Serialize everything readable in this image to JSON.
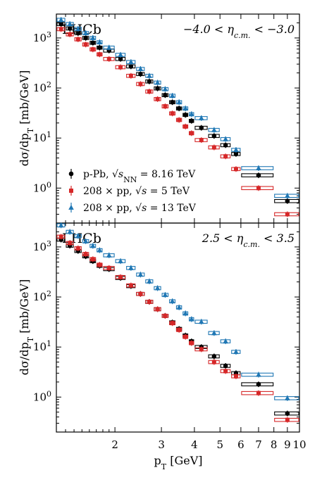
{
  "chart_data": {
    "type": "scatter",
    "xlabel": "p_T [GeV]",
    "ylabel": "dσ/dp_T [mb/GeV]",
    "x_scale": "log",
    "y_scale": "log",
    "xlim": [
      1.2,
      10
    ],
    "x_tick_labels": [
      "2",
      "3",
      "4",
      "5",
      "6",
      "7",
      "8",
      "9",
      "10"
    ],
    "y_tick_labels": [
      "10^0",
      "10^1",
      "10^2",
      "10^3"
    ],
    "bin_edges": [
      1.2,
      1.3,
      1.4,
      1.5,
      1.6,
      1.7,
      1.8,
      2.0,
      2.2,
      2.4,
      2.6,
      2.8,
      3.0,
      3.2,
      3.4,
      3.6,
      3.8,
      4.0,
      4.5,
      5.0,
      5.5,
      6.0,
      8.0,
      10.0
    ],
    "x": [
      1.25,
      1.35,
      1.45,
      1.55,
      1.65,
      1.75,
      1.9,
      2.1,
      2.3,
      2.5,
      2.7,
      2.9,
      3.1,
      3.3,
      3.5,
      3.7,
      3.9,
      4.25,
      4.75,
      5.25,
      5.75,
      7.0,
      9.0
    ],
    "legend": [
      {
        "label": "p-Pb, √s_NN = 8.16 TeV",
        "color": "#000000",
        "marker": "circle"
      },
      {
        "label": "208 × pp, √s = 5 TeV",
        "color": "#d62728",
        "marker": "square"
      },
      {
        "label": "208 × pp, √s = 13 TeV",
        "color": "#1f77b4",
        "marker": "triangle"
      }
    ],
    "panels": [
      {
        "experiment": "LHCb",
        "eta_range": "−4.0 < η_c.m. < −3.0",
        "ylim": [
          0.2,
          3000
        ],
        "series": [
          {
            "name": "p-Pb",
            "color": "#000000",
            "marker": "circle",
            "values": [
              1900,
              1550,
              1250,
              1000,
              800,
              640,
              560,
              380,
              270,
              190,
              135,
              98,
              72,
              52,
              39,
              29,
              22,
              16,
              11,
              7.2,
              4.8,
              1.8,
              0.55
            ]
          },
          {
            "name": "208×pp 5 TeV",
            "color": "#d62728",
            "marker": "square",
            "values": [
              1500,
              1180,
              940,
              740,
              590,
              470,
              380,
              260,
              175,
              120,
              85,
              60,
              43,
              31,
              23,
              17,
              12.5,
              9.1,
              6.5,
              4.3,
              2.4,
              1.0,
              0.3
            ]
          },
          {
            "name": "208×pp 13 TeV",
            "color": "#1f77b4",
            "marker": "triangle",
            "values": [
              2300,
              1900,
              1520,
              1250,
              1000,
              820,
              640,
              460,
              330,
              240,
              175,
              128,
              95,
              70,
              52,
              39,
              30,
              25,
              14.5,
              9.5,
              5.8,
              2.5,
              0.7
            ]
          }
        ]
      },
      {
        "experiment": "LHCb",
        "eta_range": "2.5 < η_c.m. < 3.5",
        "ylim": [
          0.2,
          3000
        ],
        "series": [
          {
            "name": "p-Pb",
            "color": "#000000",
            "marker": "circle",
            "values": [
              1400,
              1060,
              830,
              650,
              520,
              420,
              360,
              240,
              165,
              115,
              80,
              57,
              42,
              31,
              23,
              17,
              13,
              10,
              6.5,
              4.2,
              3.0,
              1.8,
              0.47
            ]
          },
          {
            "name": "208×pp 5 TeV",
            "color": "#d62728",
            "marker": "square",
            "values": [
              1600,
              1200,
              940,
              720,
              570,
              440,
              380,
              250,
              170,
              115,
              80,
              57,
              42,
              30,
              22,
              16,
              12,
              9.0,
              5.0,
              3.3,
              2.6,
              1.2,
              0.35
            ]
          },
          {
            "name": "208×pp 13 TeV",
            "color": "#1f77b4",
            "marker": "triangle",
            "values": [
              2700,
              2000,
              1650,
              1300,
              1050,
              860,
              680,
              520,
              380,
              280,
              205,
              150,
              110,
              82,
              62,
              47,
              36,
              32,
              19,
              13,
              8.0,
              2.8,
              0.95
            ]
          }
        ]
      }
    ]
  }
}
